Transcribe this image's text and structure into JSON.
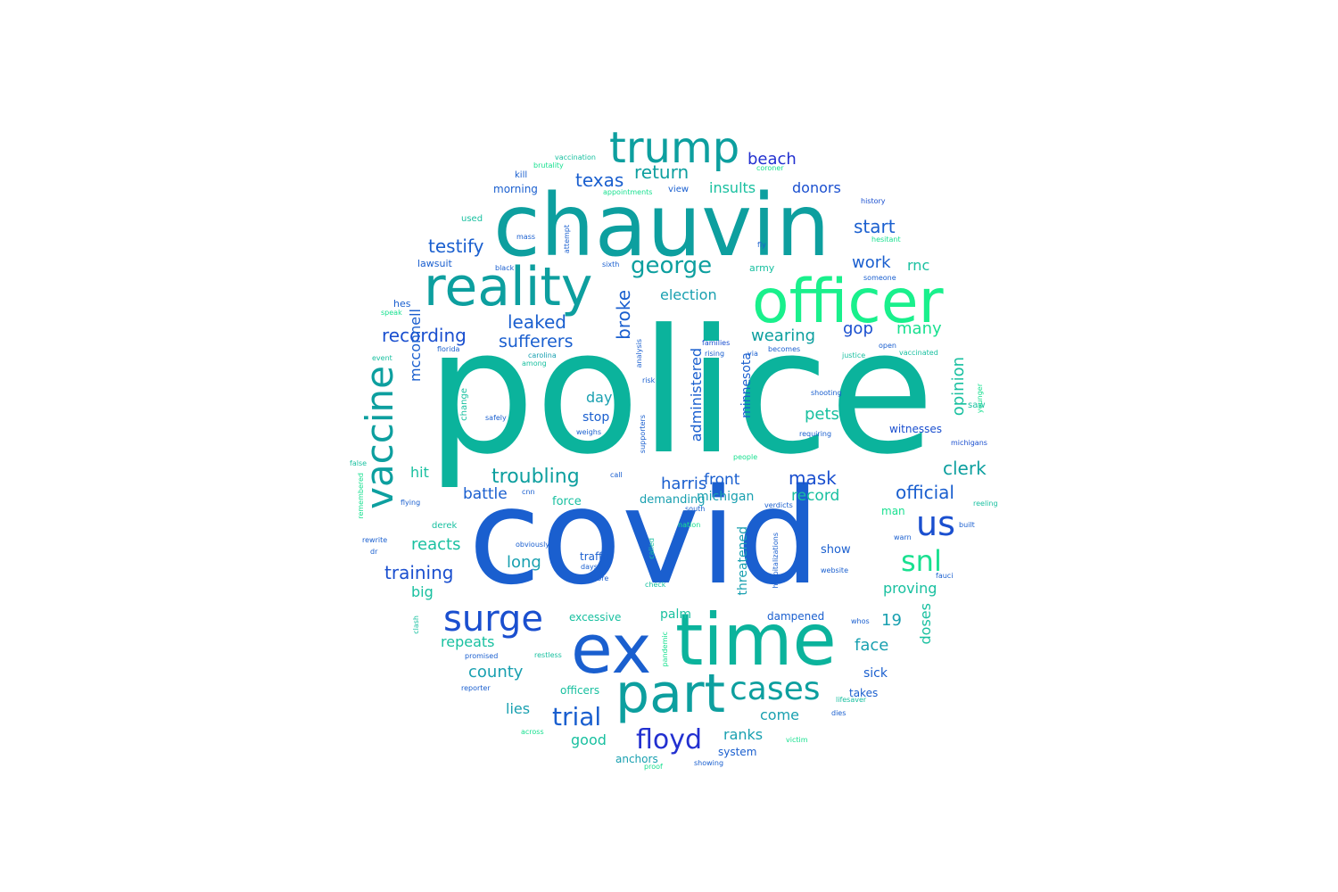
{
  "words": [
    {
      "t": "police",
      "c": "#0bb39c"
    },
    {
      "t": "covid",
      "c": "#1a5fcf"
    },
    {
      "t": "chauvin",
      "c": "#0d9f9f"
    },
    {
      "t": "time",
      "c": "#0bb39c"
    },
    {
      "t": "ex",
      "c": "#1a5fcf"
    },
    {
      "t": "reality",
      "c": "#0d9f9f"
    },
    {
      "t": "officer",
      "c": "#19f08c"
    },
    {
      "t": "part",
      "c": "#0d9f9f"
    },
    {
      "t": "trump",
      "c": "#0d9f9f"
    },
    {
      "t": "vaccine",
      "c": "#0d9f9f"
    },
    {
      "t": "surge",
      "c": "#1a4fcf"
    },
    {
      "t": "cases",
      "c": "#0d9f9f"
    },
    {
      "t": "us",
      "c": "#1a4fcf"
    },
    {
      "t": "snl",
      "c": "#19e090"
    },
    {
      "t": "floyd",
      "c": "#2230d0"
    },
    {
      "t": "george",
      "c": "#0d9f9f"
    },
    {
      "t": "trial",
      "c": "#1a5fcf"
    },
    {
      "t": "troubling",
      "c": "#0d9f9f"
    },
    {
      "t": "texas",
      "c": "#1a5fcf"
    },
    {
      "t": "return",
      "c": "#0d9f9f"
    },
    {
      "t": "beach",
      "c": "#2230d0"
    },
    {
      "t": "donors",
      "c": "#1a4fcf"
    },
    {
      "t": "insults",
      "c": "#19c0a0"
    },
    {
      "t": "testify",
      "c": "#1a5fcf"
    },
    {
      "t": "start",
      "c": "#1a5fcf"
    },
    {
      "t": "work",
      "c": "#1a5fcf"
    },
    {
      "t": "rnc",
      "c": "#19c0a0"
    },
    {
      "t": "election",
      "c": "#19a0b0"
    },
    {
      "t": "leaked",
      "c": "#1a5fcf"
    },
    {
      "t": "recording",
      "c": "#1a4fcf"
    },
    {
      "t": "sufferers",
      "c": "#1a5fcf"
    },
    {
      "t": "wearing",
      "c": "#0d9f9f"
    },
    {
      "t": "gop",
      "c": "#1a4fcf"
    },
    {
      "t": "many",
      "c": "#19e090"
    },
    {
      "t": "broke",
      "c": "#1a5fcf"
    },
    {
      "t": "mcconnell",
      "c": "#1a5fcf"
    },
    {
      "t": "administered",
      "c": "#1a5fcf"
    },
    {
      "t": "minnesota",
      "c": "#1a5fcf"
    },
    {
      "t": "opinion",
      "c": "#19c0a0"
    },
    {
      "t": "pets",
      "c": "#19c0a0"
    },
    {
      "t": "day",
      "c": "#19a0b0"
    },
    {
      "t": "stop",
      "c": "#1a5fcf"
    },
    {
      "t": "witnesses",
      "c": "#1a4fcf"
    },
    {
      "t": "hit",
      "c": "#19c0a0"
    },
    {
      "t": "clerk",
      "c": "#0d9f9f"
    },
    {
      "t": "front",
      "c": "#1a5fcf"
    },
    {
      "t": "harris",
      "c": "#1a5fcf"
    },
    {
      "t": "mask",
      "c": "#1a4fcf"
    },
    {
      "t": "official",
      "c": "#1a5fcf"
    },
    {
      "t": "battle",
      "c": "#1a5fcf"
    },
    {
      "t": "record",
      "c": "#19c0a0"
    },
    {
      "t": "michigan",
      "c": "#19a0b0"
    },
    {
      "t": "demanding",
      "c": "#19a0b0"
    },
    {
      "t": "force",
      "c": "#19c0a0"
    },
    {
      "t": "reacts",
      "c": "#19c0a0"
    },
    {
      "t": "long",
      "c": "#19a0b0"
    },
    {
      "t": "training",
      "c": "#1a4fcf"
    },
    {
      "t": "big",
      "c": "#19c0a0"
    },
    {
      "t": "traffic",
      "c": "#1a5fcf"
    },
    {
      "t": "threatened",
      "c": "#19a0b0"
    },
    {
      "t": "show",
      "c": "#1a5fcf"
    },
    {
      "t": "proving",
      "c": "#19c0a0"
    },
    {
      "t": "palm",
      "c": "#19c0a0"
    },
    {
      "t": "dampened",
      "c": "#1a5fcf"
    },
    {
      "t": "19",
      "c": "#19a0b0"
    },
    {
      "t": "doses",
      "c": "#19c0a0"
    },
    {
      "t": "face",
      "c": "#19a0b0"
    },
    {
      "t": "repeats",
      "c": "#19c0a0"
    },
    {
      "t": "county",
      "c": "#19a0b0"
    },
    {
      "t": "excessive",
      "c": "#19c0a0"
    },
    {
      "t": "sick",
      "c": "#1a5fcf"
    },
    {
      "t": "lies",
      "c": "#19a0b0"
    },
    {
      "t": "come",
      "c": "#19a0b0"
    },
    {
      "t": "ranks",
      "c": "#19a0b0"
    },
    {
      "t": "takes",
      "c": "#1a5fcf"
    },
    {
      "t": "good",
      "c": "#19c0a0"
    },
    {
      "t": "officers",
      "c": "#19c0a0"
    },
    {
      "t": "anchors",
      "c": "#19a0b0"
    },
    {
      "t": "system",
      "c": "#1a5fcf"
    },
    {
      "t": "man",
      "c": "#19e090"
    },
    {
      "t": "morning",
      "c": "#1a5fcf"
    },
    {
      "t": "view",
      "c": "#1a5fcf"
    },
    {
      "t": "kill",
      "c": "#1a5fcf"
    },
    {
      "t": "used",
      "c": "#19c0a0"
    },
    {
      "t": "lawsuit",
      "c": "#1a5fcf"
    },
    {
      "t": "hes",
      "c": "#1a5fcf"
    },
    {
      "t": "army",
      "c": "#19c0a0"
    },
    {
      "t": "vaccination",
      "c": "#19c0a0"
    },
    {
      "t": "brutality",
      "c": "#19e090"
    },
    {
      "t": "coroner",
      "c": "#19e090"
    },
    {
      "t": "appointments",
      "c": "#19e090"
    },
    {
      "t": "history",
      "c": "#1a4fcf"
    },
    {
      "t": "hesitant",
      "c": "#19e090"
    },
    {
      "t": "mass",
      "c": "#1a5fcf"
    },
    {
      "t": "attempt",
      "c": "#1a5fcf"
    },
    {
      "t": "black",
      "c": "#1a5fcf"
    },
    {
      "t": "sixth",
      "c": "#1a5fcf"
    },
    {
      "t": "fly",
      "c": "#1a5fcf"
    },
    {
      "t": "someone",
      "c": "#1a5fcf"
    },
    {
      "t": "speak",
      "c": "#19e090"
    },
    {
      "t": "event",
      "c": "#19c0a0"
    },
    {
      "t": "florida",
      "c": "#1a5fcf"
    },
    {
      "t": "carolina",
      "c": "#19a0b0"
    },
    {
      "t": "among",
      "c": "#19c0a0"
    },
    {
      "t": "analysis",
      "c": "#1a5fcf"
    },
    {
      "t": "risk",
      "c": "#1a5fcf"
    },
    {
      "t": "families",
      "c": "#1a4fcf"
    },
    {
      "t": "rising",
      "c": "#1a5fcf"
    },
    {
      "t": "via",
      "c": "#1a5fcf"
    },
    {
      "t": "becomes",
      "c": "#1a5fcf"
    },
    {
      "t": "open",
      "c": "#1a5fcf"
    },
    {
      "t": "justice",
      "c": "#19c0a0"
    },
    {
      "t": "vaccinated",
      "c": "#19c0a0"
    },
    {
      "t": "shooting",
      "c": "#1a5fcf"
    },
    {
      "t": "saw",
      "c": "#19c0a0"
    },
    {
      "t": "younger",
      "c": "#19e090"
    },
    {
      "t": "requiring",
      "c": "#1a5fcf"
    },
    {
      "t": "michigans",
      "c": "#1a4fcf"
    },
    {
      "t": "false",
      "c": "#19c0a0"
    },
    {
      "t": "remembered",
      "c": "#19e090"
    },
    {
      "t": "change",
      "c": "#19c0a0"
    },
    {
      "t": "safely",
      "c": "#1a5fcf"
    },
    {
      "t": "weighs",
      "c": "#1a5fcf"
    },
    {
      "t": "supporters",
      "c": "#1a5fcf"
    },
    {
      "t": "people",
      "c": "#19e090"
    },
    {
      "t": "call",
      "c": "#1a5fcf"
    },
    {
      "t": "cnn",
      "c": "#1a5fcf"
    },
    {
      "t": "flying",
      "c": "#1a5fcf"
    },
    {
      "t": "south",
      "c": "#1a5fcf"
    },
    {
      "t": "verdicts",
      "c": "#1a5fcf"
    },
    {
      "t": "reeling",
      "c": "#19c0a0"
    },
    {
      "t": "derek",
      "c": "#19c0a0"
    },
    {
      "t": "nation",
      "c": "#19e090"
    },
    {
      "t": "built",
      "c": "#1a5fcf"
    },
    {
      "t": "rewrite",
      "c": "#1a5fcf"
    },
    {
      "t": "obviously",
      "c": "#1a5fcf"
    },
    {
      "t": "dr",
      "c": "#1a5fcf"
    },
    {
      "t": "called",
      "c": "#19c0a0"
    },
    {
      "t": "warn",
      "c": "#1a5fcf"
    },
    {
      "t": "website",
      "c": "#1a5fcf"
    },
    {
      "t": "days",
      "c": "#1a5fcf"
    },
    {
      "t": "store",
      "c": "#1a5fcf"
    },
    {
      "t": "check",
      "c": "#19c0a0"
    },
    {
      "t": "hospitalizations",
      "c": "#1a5fcf"
    },
    {
      "t": "fauci",
      "c": "#1a5fcf"
    },
    {
      "t": "clash",
      "c": "#19c0a0"
    },
    {
      "t": "whos",
      "c": "#1a5fcf"
    },
    {
      "t": "pandemic",
      "c": "#19e090"
    },
    {
      "t": "promised",
      "c": "#1a5fcf"
    },
    {
      "t": "restless",
      "c": "#19c0a0"
    },
    {
      "t": "reporter",
      "c": "#1a5fcf"
    },
    {
      "t": "lifesaver",
      "c": "#19c0a0"
    },
    {
      "t": "dies",
      "c": "#1a5fcf"
    },
    {
      "t": "across",
      "c": "#19e090"
    },
    {
      "t": "victim",
      "c": "#19e090"
    },
    {
      "t": "showing",
      "c": "#1a5fcf"
    },
    {
      "t": "proof",
      "c": "#19e090"
    }
  ]
}
